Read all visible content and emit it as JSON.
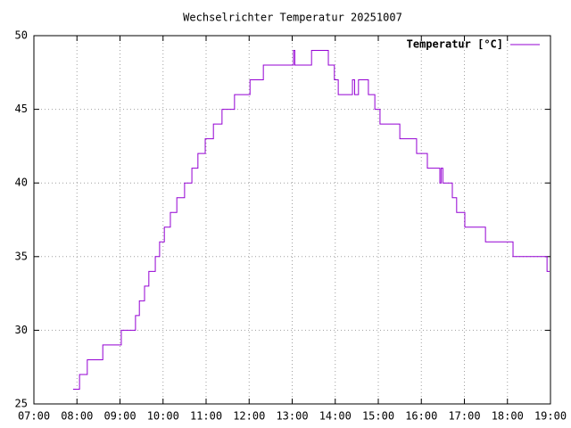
{
  "chart_data": {
    "type": "line",
    "step": true,
    "title": "Wechselrichter Temperatur 20251007",
    "series": [
      {
        "name": "Temperatur [°C]",
        "color": "#9400d3",
        "x": [
          7.91,
          8.06,
          8.24,
          8.6,
          9.03,
          9.36,
          9.45,
          9.57,
          9.67,
          9.82,
          9.92,
          10.03,
          10.17,
          10.32,
          10.5,
          10.67,
          10.81,
          10.98,
          11.17,
          11.37,
          11.66,
          12.02,
          12.33,
          13.03,
          13.06,
          13.45,
          13.84,
          13.98,
          14.07,
          14.4,
          14.45,
          14.54,
          14.77,
          14.92,
          15.04,
          15.5,
          15.89,
          16.14,
          16.43,
          16.46,
          16.5,
          16.72,
          16.82,
          17.01,
          17.49,
          18.13,
          18.92,
          18.98
        ],
        "values": [
          26,
          27,
          28,
          29,
          30,
          31,
          32,
          33,
          34,
          35,
          36,
          37,
          38,
          39,
          40,
          41,
          42,
          43,
          44,
          45,
          46,
          47,
          48,
          49,
          48,
          49,
          48,
          47,
          46,
          47,
          46,
          47,
          46,
          45,
          44,
          43,
          42,
          41,
          40,
          41,
          40,
          39,
          38,
          37,
          36,
          35,
          34,
          34
        ]
      }
    ],
    "xlim": [
      7,
      19
    ],
    "xticks": [
      {
        "value": 7,
        "label": "07:00"
      },
      {
        "value": 8,
        "label": "08:00"
      },
      {
        "value": 9,
        "label": "09:00"
      },
      {
        "value": 10,
        "label": "10:00"
      },
      {
        "value": 11,
        "label": "11:00"
      },
      {
        "value": 12,
        "label": "12:00"
      },
      {
        "value": 13,
        "label": "13:00"
      },
      {
        "value": 14,
        "label": "14:00"
      },
      {
        "value": 15,
        "label": "15:00"
      },
      {
        "value": 16,
        "label": "16:00"
      },
      {
        "value": 17,
        "label": "17:00"
      },
      {
        "value": 18,
        "label": "18:00"
      },
      {
        "value": 19,
        "label": "19:00"
      }
    ],
    "ylim": [
      25,
      50
    ],
    "yticks": [
      25,
      30,
      35,
      40,
      45,
      50
    ],
    "grid": true,
    "legend": "top-right"
  }
}
